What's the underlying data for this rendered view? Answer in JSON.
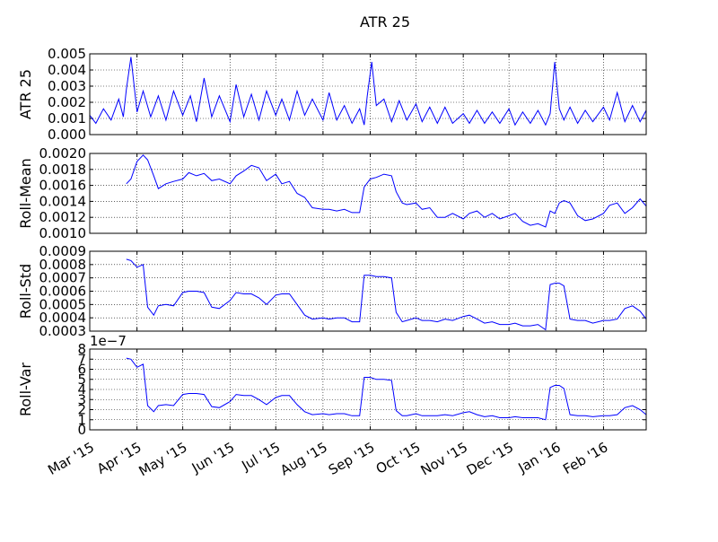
{
  "chart_data": {
    "type": "line",
    "title": "ATR 25",
    "line_color": "#0000ff",
    "x_tick_labels": [
      "Mar '15",
      "Apr '15",
      "May '15",
      "Jun '15",
      "Jul '15",
      "Aug '15",
      "Sep '15",
      "Oct '15",
      "Nov '15",
      "Dec '15",
      "Jan '16",
      "Feb '16"
    ],
    "x_tick_dates": [
      "2015-03-01",
      "2015-04-01",
      "2015-05-01",
      "2015-06-01",
      "2015-07-01",
      "2015-08-01",
      "2015-09-01",
      "2015-10-01",
      "2015-11-01",
      "2015-12-01",
      "2016-01-01",
      "2016-02-01"
    ],
    "xlim": [
      "2015-03-01",
      "2016-02-29"
    ],
    "grid": "dotted",
    "panels": [
      {
        "ylabel": "ATR 25",
        "ylim": [
          0,
          0.005
        ],
        "yticks": [
          "0.000",
          "0.001",
          "0.002",
          "0.003",
          "0.004",
          "0.005"
        ],
        "series": [
          {
            "x": [
              "2015-03-01",
              "2015-03-05",
              "2015-03-10",
              "2015-03-15",
              "2015-03-20",
              "2015-03-23",
              "2015-03-25",
              "2015-03-28",
              "2015-04-01",
              "2015-04-05",
              "2015-04-10",
              "2015-04-15",
              "2015-04-20",
              "2015-04-25",
              "2015-05-01",
              "2015-05-06",
              "2015-05-10",
              "2015-05-15",
              "2015-05-20",
              "2015-05-25",
              "2015-06-01",
              "2015-06-05",
              "2015-06-10",
              "2015-06-15",
              "2015-06-20",
              "2015-06-25",
              "2015-07-01",
              "2015-07-05",
              "2015-07-10",
              "2015-07-15",
              "2015-07-20",
              "2015-07-25",
              "2015-08-01",
              "2015-08-05",
              "2015-08-10",
              "2015-08-15",
              "2015-08-20",
              "2015-08-25",
              "2015-08-28",
              "2015-08-30",
              "2015-09-02",
              "2015-09-05",
              "2015-09-10",
              "2015-09-15",
              "2015-09-20",
              "2015-09-25",
              "2015-10-01",
              "2015-10-05",
              "2015-10-10",
              "2015-10-15",
              "2015-10-20",
              "2015-10-25",
              "2015-11-01",
              "2015-11-05",
              "2015-11-10",
              "2015-11-15",
              "2015-11-20",
              "2015-11-25",
              "2015-12-01",
              "2015-12-05",
              "2015-12-10",
              "2015-12-15",
              "2015-12-20",
              "2015-12-25",
              "2015-12-28",
              "2015-12-31",
              "2016-01-03",
              "2016-01-06",
              "2016-01-10",
              "2016-01-15",
              "2016-01-20",
              "2016-01-25",
              "2016-02-01",
              "2016-02-05",
              "2016-02-10",
              "2016-02-15",
              "2016-02-20",
              "2016-02-25",
              "2016-02-29"
            ],
            "y": [
              0.0012,
              0.0007,
              0.0016,
              0.0009,
              0.0022,
              0.0011,
              0.0028,
              0.0048,
              0.0014,
              0.0027,
              0.0011,
              0.0024,
              0.0009,
              0.0027,
              0.0012,
              0.0024,
              0.0008,
              0.0035,
              0.0011,
              0.0024,
              0.0008,
              0.0031,
              0.0011,
              0.0025,
              0.0009,
              0.0027,
              0.0012,
              0.0022,
              0.0009,
              0.0027,
              0.0012,
              0.0022,
              0.0009,
              0.0026,
              0.0009,
              0.0018,
              0.0007,
              0.0016,
              0.0006,
              0.0024,
              0.0045,
              0.0018,
              0.0022,
              0.0008,
              0.0021,
              0.0009,
              0.0019,
              0.0008,
              0.0017,
              0.0007,
              0.0017,
              0.0007,
              0.0013,
              0.0007,
              0.0015,
              0.0007,
              0.0014,
              0.0007,
              0.0016,
              0.0006,
              0.0014,
              0.0007,
              0.0015,
              0.0006,
              0.0013,
              0.0045,
              0.0016,
              0.0009,
              0.0017,
              0.0007,
              0.0015,
              0.0008,
              0.0017,
              0.0009,
              0.0026,
              0.0008,
              0.0018,
              0.0008,
              0.0015
            ]
          }
        ]
      },
      {
        "ylabel": "Roll-Mean",
        "ylim": [
          0.001,
          0.002
        ],
        "yticks": [
          "0.0010",
          "0.0012",
          "0.0014",
          "0.0016",
          "0.0018",
          "0.0020"
        ],
        "series": [
          {
            "x": [
              "2015-03-25",
              "2015-03-28",
              "2015-04-01",
              "2015-04-05",
              "2015-04-08",
              "2015-04-12",
              "2015-04-15",
              "2015-04-20",
              "2015-04-25",
              "2015-05-01",
              "2015-05-05",
              "2015-05-10",
              "2015-05-15",
              "2015-05-20",
              "2015-05-25",
              "2015-06-01",
              "2015-06-05",
              "2015-06-10",
              "2015-06-15",
              "2015-06-20",
              "2015-06-25",
              "2015-07-01",
              "2015-07-05",
              "2015-07-10",
              "2015-07-15",
              "2015-07-20",
              "2015-07-25",
              "2015-08-01",
              "2015-08-05",
              "2015-08-10",
              "2015-08-15",
              "2015-08-20",
              "2015-08-25",
              "2015-08-28",
              "2015-09-01",
              "2015-09-05",
              "2015-09-10",
              "2015-09-15",
              "2015-09-18",
              "2015-09-22",
              "2015-09-25",
              "2015-10-01",
              "2015-10-05",
              "2015-10-10",
              "2015-10-15",
              "2015-10-20",
              "2015-10-25",
              "2015-11-01",
              "2015-11-05",
              "2015-11-10",
              "2015-11-15",
              "2015-11-20",
              "2015-11-25",
              "2015-12-01",
              "2015-12-05",
              "2015-12-10",
              "2015-12-15",
              "2015-12-20",
              "2015-12-25",
              "2015-12-28",
              "2015-12-31",
              "2016-01-03",
              "2016-01-06",
              "2016-01-10",
              "2016-01-15",
              "2016-01-20",
              "2016-01-25",
              "2016-02-01",
              "2016-02-05",
              "2016-02-10",
              "2016-02-15",
              "2016-02-20",
              "2016-02-25",
              "2016-02-29"
            ],
            "y": [
              0.00162,
              0.00168,
              0.0019,
              0.00198,
              0.00192,
              0.00172,
              0.00156,
              0.00162,
              0.00165,
              0.00168,
              0.00176,
              0.00172,
              0.00175,
              0.00166,
              0.00168,
              0.00162,
              0.00172,
              0.00178,
              0.00185,
              0.00182,
              0.00166,
              0.00174,
              0.00162,
              0.00165,
              0.0015,
              0.00145,
              0.00132,
              0.0013,
              0.0013,
              0.00128,
              0.0013,
              0.00126,
              0.00126,
              0.00158,
              0.00168,
              0.0017,
              0.00174,
              0.00172,
              0.00152,
              0.00138,
              0.00136,
              0.00138,
              0.0013,
              0.00132,
              0.0012,
              0.0012,
              0.00125,
              0.00118,
              0.00125,
              0.00128,
              0.0012,
              0.00125,
              0.00118,
              0.00122,
              0.00125,
              0.00115,
              0.0011,
              0.00112,
              0.00108,
              0.00128,
              0.00125,
              0.00138,
              0.00141,
              0.00138,
              0.00122,
              0.00116,
              0.00118,
              0.00125,
              0.00135,
              0.00138,
              0.00125,
              0.00132,
              0.00143,
              0.00134
            ]
          }
        ]
      },
      {
        "ylabel": "Roll-Std",
        "ylim": [
          0.0003,
          0.0009
        ],
        "yticks": [
          "0.0003",
          "0.0004",
          "0.0005",
          "0.0006",
          "0.0007",
          "0.0008",
          "0.0009"
        ],
        "series": [
          {
            "x": [
              "2015-03-25",
              "2015-03-28",
              "2015-04-01",
              "2015-04-05",
              "2015-04-08",
              "2015-04-12",
              "2015-04-15",
              "2015-04-20",
              "2015-04-25",
              "2015-05-01",
              "2015-05-05",
              "2015-05-10",
              "2015-05-15",
              "2015-05-20",
              "2015-05-25",
              "2015-06-01",
              "2015-06-05",
              "2015-06-10",
              "2015-06-15",
              "2015-06-20",
              "2015-06-25",
              "2015-07-01",
              "2015-07-05",
              "2015-07-10",
              "2015-07-15",
              "2015-07-20",
              "2015-07-25",
              "2015-08-01",
              "2015-08-05",
              "2015-08-10",
              "2015-08-15",
              "2015-08-20",
              "2015-08-25",
              "2015-08-28",
              "2015-09-01",
              "2015-09-05",
              "2015-09-10",
              "2015-09-15",
              "2015-09-18",
              "2015-09-22",
              "2015-09-25",
              "2015-10-01",
              "2015-10-05",
              "2015-10-10",
              "2015-10-15",
              "2015-10-20",
              "2015-10-25",
              "2015-11-01",
              "2015-11-05",
              "2015-11-10",
              "2015-11-15",
              "2015-11-20",
              "2015-11-25",
              "2015-12-01",
              "2015-12-05",
              "2015-12-10",
              "2015-12-15",
              "2015-12-20",
              "2015-12-25",
              "2015-12-28",
              "2015-12-31",
              "2016-01-03",
              "2016-01-06",
              "2016-01-10",
              "2016-01-15",
              "2016-01-20",
              "2016-01-25",
              "2016-02-01",
              "2016-02-05",
              "2016-02-10",
              "2016-02-15",
              "2016-02-20",
              "2016-02-25",
              "2016-02-29"
            ],
            "y": [
              0.00084,
              0.00083,
              0.00078,
              0.0008,
              0.00048,
              0.00042,
              0.00049,
              0.0005,
              0.00049,
              0.00059,
              0.0006,
              0.0006,
              0.00059,
              0.00048,
              0.00047,
              0.00053,
              0.00059,
              0.00058,
              0.00058,
              0.00055,
              0.0005,
              0.00057,
              0.00058,
              0.00058,
              0.0005,
              0.00042,
              0.00039,
              0.0004,
              0.00039,
              0.0004,
              0.0004,
              0.00037,
              0.00037,
              0.00072,
              0.00072,
              0.00071,
              0.00071,
              0.0007,
              0.00044,
              0.00037,
              0.00038,
              0.0004,
              0.00038,
              0.00038,
              0.00037,
              0.00039,
              0.00038,
              0.00041,
              0.00042,
              0.00039,
              0.00036,
              0.00037,
              0.00035,
              0.00035,
              0.00036,
              0.00034,
              0.00034,
              0.00035,
              0.00031,
              0.00065,
              0.00066,
              0.00066,
              0.00064,
              0.00039,
              0.00038,
              0.00038,
              0.00036,
              0.00038,
              0.00038,
              0.00039,
              0.00047,
              0.00049,
              0.00045,
              0.00039
            ]
          }
        ]
      },
      {
        "ylabel": "Roll-Var",
        "ylim": [
          0,
          8
        ],
        "scale_label": "1e−7",
        "yticks": [
          "0",
          "1",
          "2",
          "3",
          "4",
          "5",
          "6",
          "7",
          "8"
        ],
        "series": [
          {
            "x": [
              "2015-03-25",
              "2015-03-28",
              "2015-04-01",
              "2015-04-05",
              "2015-04-08",
              "2015-04-12",
              "2015-04-15",
              "2015-04-20",
              "2015-04-25",
              "2015-05-01",
              "2015-05-05",
              "2015-05-10",
              "2015-05-15",
              "2015-05-20",
              "2015-05-25",
              "2015-06-01",
              "2015-06-05",
              "2015-06-10",
              "2015-06-15",
              "2015-06-20",
              "2015-06-25",
              "2015-07-01",
              "2015-07-05",
              "2015-07-10",
              "2015-07-15",
              "2015-07-20",
              "2015-07-25",
              "2015-08-01",
              "2015-08-05",
              "2015-08-10",
              "2015-08-15",
              "2015-08-20",
              "2015-08-25",
              "2015-08-28",
              "2015-09-01",
              "2015-09-05",
              "2015-09-10",
              "2015-09-15",
              "2015-09-18",
              "2015-09-22",
              "2015-09-25",
              "2015-10-01",
              "2015-10-05",
              "2015-10-10",
              "2015-10-15",
              "2015-10-20",
              "2015-10-25",
              "2015-11-01",
              "2015-11-05",
              "2015-11-10",
              "2015-11-15",
              "2015-11-20",
              "2015-11-25",
              "2015-12-01",
              "2015-12-05",
              "2015-12-10",
              "2015-12-15",
              "2015-12-20",
              "2015-12-25",
              "2015-12-28",
              "2015-12-31",
              "2016-01-03",
              "2016-01-06",
              "2016-01-10",
              "2016-01-15",
              "2016-01-20",
              "2016-01-25",
              "2016-02-01",
              "2016-02-05",
              "2016-02-10",
              "2016-02-15",
              "2016-02-20",
              "2016-02-25",
              "2016-02-29"
            ],
            "y": [
              7.1,
              7.0,
              6.2,
              6.5,
              2.4,
              1.8,
              2.4,
              2.5,
              2.4,
              3.5,
              3.6,
              3.6,
              3.5,
              2.3,
              2.2,
              2.8,
              3.5,
              3.4,
              3.4,
              3.0,
              2.5,
              3.2,
              3.4,
              3.4,
              2.5,
              1.8,
              1.5,
              1.6,
              1.5,
              1.6,
              1.6,
              1.4,
              1.4,
              5.2,
              5.2,
              5.0,
              5.0,
              4.9,
              1.9,
              1.4,
              1.4,
              1.6,
              1.4,
              1.4,
              1.4,
              1.5,
              1.4,
              1.7,
              1.8,
              1.5,
              1.3,
              1.4,
              1.2,
              1.2,
              1.3,
              1.2,
              1.2,
              1.2,
              1.0,
              4.2,
              4.4,
              4.4,
              4.1,
              1.5,
              1.4,
              1.4,
              1.3,
              1.4,
              1.4,
              1.5,
              2.2,
              2.4,
              2.0,
              1.5
            ]
          }
        ]
      }
    ]
  }
}
